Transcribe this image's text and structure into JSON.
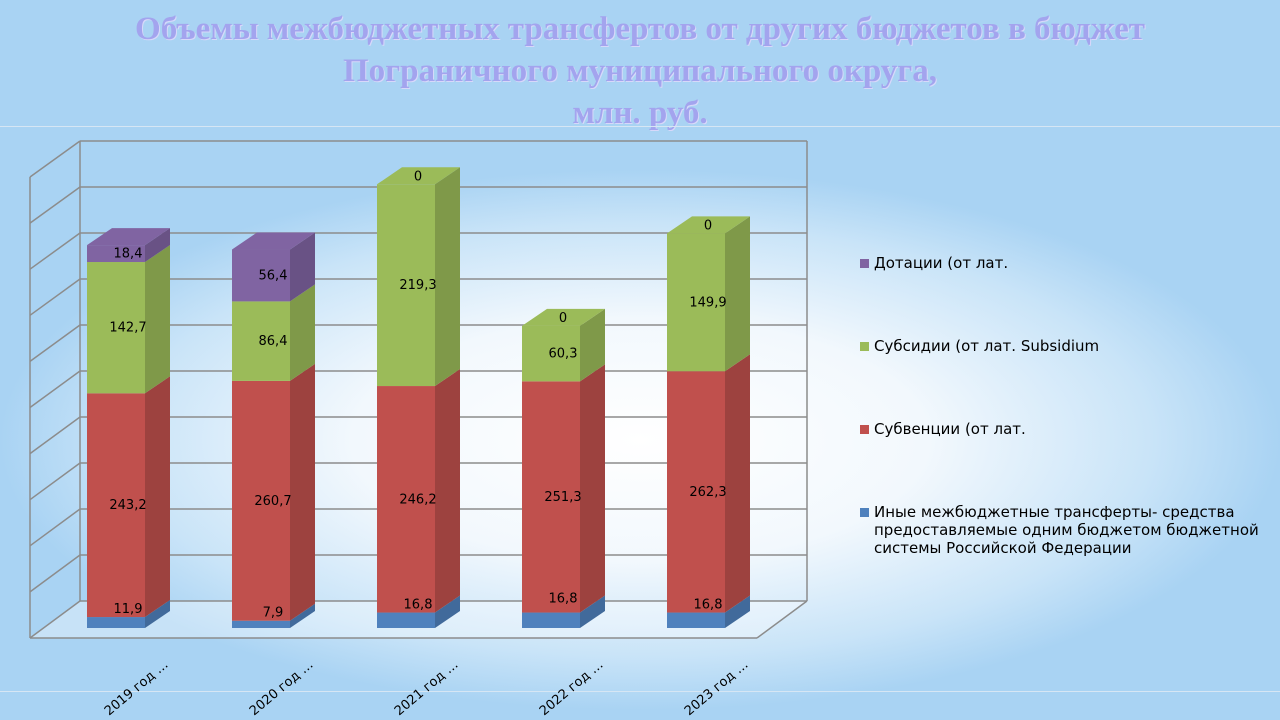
{
  "title_lines": [
    "Объемы межбюджетных трансфертов от других бюджетов в бюджет",
    "Пограничного муниципального округа,",
    "млн. руб."
  ],
  "colors": {
    "blue": "#4f81bd",
    "red": "#c0504d",
    "green": "#9bbb59",
    "purple": "#8064a2"
  },
  "chart_data": {
    "type": "bar",
    "stacked": true,
    "three_d": true,
    "categories": [
      "2019 год    …",
      "2020 год    …",
      "2021 год    …",
      "2022 год    …",
      "2023 год    …"
    ],
    "ylim": [
      0,
      500
    ],
    "grid": true,
    "legend_position": "right",
    "series": [
      {
        "name": "Иные межбюджетные трансферты- средства предоставляемые одним бюджетом бюджетной системы Российской Федерации",
        "values": [
          11.9,
          7.9,
          16.8,
          16.8,
          16.8
        ],
        "labels": [
          "11,9",
          "7,9",
          "16,8",
          "16,8",
          "16,8"
        ],
        "color": "#4f81bd"
      },
      {
        "name": "Субвенции (от лат.",
        "values": [
          243.2,
          260.7,
          246.2,
          251.3,
          262.3
        ],
        "labels": [
          "243,2",
          "260,7",
          "246,2",
          "251,3",
          "262,3"
        ],
        "color": "#c0504d"
      },
      {
        "name": "Субсидии (от лат. Subsidium",
        "values": [
          142.7,
          86.4,
          219.3,
          60.3,
          149.9
        ],
        "labels": [
          "142,7",
          "86,4",
          "219,3",
          "60,3",
          "149,9"
        ],
        "color": "#9bbb59"
      },
      {
        "name": "Дотации (от лат.",
        "values": [
          18.4,
          56.4,
          0,
          0,
          0
        ],
        "labels": [
          "18,4",
          "56,4",
          "0",
          "0",
          "0"
        ],
        "color": "#8064a2"
      }
    ]
  }
}
